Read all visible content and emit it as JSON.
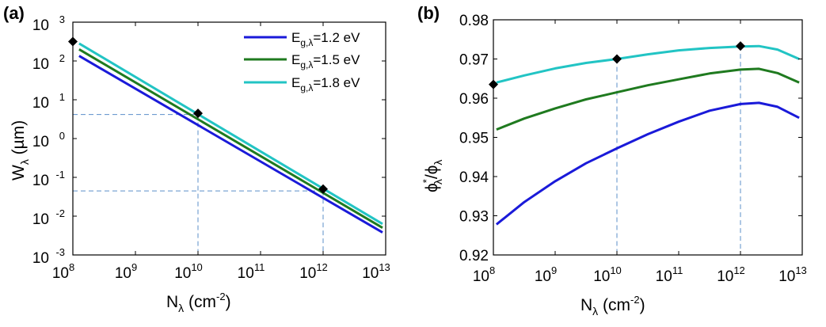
{
  "colors": {
    "blue": "#1a1ad9",
    "green": "#1f7a1f",
    "cyan": "#22c4c4",
    "guide": "#5b8fc9",
    "marker": "#000000"
  },
  "chart_data": [
    {
      "type": "line",
      "panel_label": "(a)",
      "yscale": "log",
      "xscale": "log",
      "xlabel": {
        "main": "N",
        "sub": "λ",
        "rest": " (cm",
        "exp": "-2",
        "close": ")"
      },
      "ylabel": {
        "main": "W",
        "sub": "λ",
        "rest": " (µm)"
      },
      "xlim_exp": [
        8,
        13
      ],
      "ylim_exp": [
        -3,
        3
      ],
      "x_tick_exps": [
        8,
        9,
        10,
        11,
        12,
        13
      ],
      "y_tick_exps": [
        3,
        2,
        1,
        0,
        -1,
        -2,
        -3
      ],
      "tick_base": "10",
      "legend": [
        {
          "main": "E",
          "sub": "g,λ",
          "rest": "=1.2 eV",
          "color_key": "blue"
        },
        {
          "main": "E",
          "sub": "g,λ",
          "rest": "=1.5 eV",
          "color_key": "green"
        },
        {
          "main": "E",
          "sub": "g,λ",
          "rest": "=1.8 eV",
          "color_key": "cyan"
        }
      ],
      "series": [
        {
          "name": "Eg=1.2 eV",
          "color_key": "blue",
          "x_exp": [
            8.1,
            12.95
          ],
          "y_exp": [
            2.13,
            -2.42
          ]
        },
        {
          "name": "Eg=1.5 eV",
          "color_key": "green",
          "x_exp": [
            8.1,
            12.95
          ],
          "y_exp": [
            2.3,
            -2.3
          ]
        },
        {
          "name": "Eg=1.8 eV",
          "color_key": "cyan",
          "x_exp": [
            8.1,
            12.95
          ],
          "y_exp": [
            2.45,
            -2.2
          ]
        }
      ],
      "markers": [
        {
          "x_exp": 8.0,
          "y_exp": 2.5
        },
        {
          "x_exp": 10.0,
          "y_exp": 0.65
        },
        {
          "x_exp": 12.0,
          "y_exp": -1.3
        }
      ],
      "guides": [
        {
          "x_exp": 10.0,
          "y_exp": 0.62
        },
        {
          "x_exp": 12.0,
          "y_exp": -1.35
        }
      ]
    },
    {
      "type": "line",
      "panel_label": "(b)",
      "xscale": "log",
      "yscale": "linear",
      "xlabel": {
        "main": "N",
        "sub": "λ",
        "rest": " (cm",
        "exp": "-2",
        "close": ")"
      },
      "ylabel": {
        "phi": "ϕ",
        "star": "*",
        "sub": "λ",
        "slash": "/ϕ",
        "sub2": "λ"
      },
      "xlim_exp": [
        8,
        13
      ],
      "ylim": [
        0.92,
        0.98
      ],
      "x_tick_exps": [
        8,
        9,
        10,
        11,
        12,
        13
      ],
      "y_ticks": [
        "0.98",
        "0.97",
        "0.96",
        "0.95",
        "0.94",
        "0.93",
        "0.92"
      ],
      "tick_base": "10",
      "series": [
        {
          "name": "Eg=1.2 eV",
          "color_key": "blue",
          "x_exp": [
            8.05,
            8.5,
            9.0,
            9.5,
            10.0,
            10.5,
            11.0,
            11.5,
            12.0,
            12.3,
            12.6,
            12.95
          ],
          "y": [
            0.9278,
            0.9335,
            0.9388,
            0.9434,
            0.9472,
            0.9508,
            0.954,
            0.9568,
            0.9585,
            0.9588,
            0.9578,
            0.955
          ]
        },
        {
          "name": "Eg=1.5 eV",
          "color_key": "green",
          "x_exp": [
            8.05,
            8.5,
            9.0,
            9.5,
            10.0,
            10.5,
            11.0,
            11.5,
            12.0,
            12.3,
            12.6,
            12.95
          ],
          "y": [
            0.952,
            0.9548,
            0.9574,
            0.9597,
            0.9615,
            0.9633,
            0.9648,
            0.9663,
            0.9673,
            0.9675,
            0.9664,
            0.964
          ]
        },
        {
          "name": "Eg=1.8 eV",
          "color_key": "cyan",
          "x_exp": [
            8.05,
            8.5,
            9.0,
            9.5,
            10.0,
            10.5,
            11.0,
            11.5,
            12.0,
            12.3,
            12.6,
            12.95
          ],
          "y": [
            0.964,
            0.9658,
            0.9676,
            0.969,
            0.97,
            0.9712,
            0.9722,
            0.9728,
            0.9732,
            0.9733,
            0.9724,
            0.97
          ]
        }
      ],
      "markers": [
        {
          "x_exp": 8.0,
          "y": 0.9635
        },
        {
          "x_exp": 10.0,
          "y": 0.97
        },
        {
          "x_exp": 12.0,
          "y": 0.9733
        }
      ],
      "guides": [
        {
          "x_exp": 10.0,
          "y": 0.97
        },
        {
          "x_exp": 12.0,
          "y": 0.9733
        }
      ]
    }
  ]
}
